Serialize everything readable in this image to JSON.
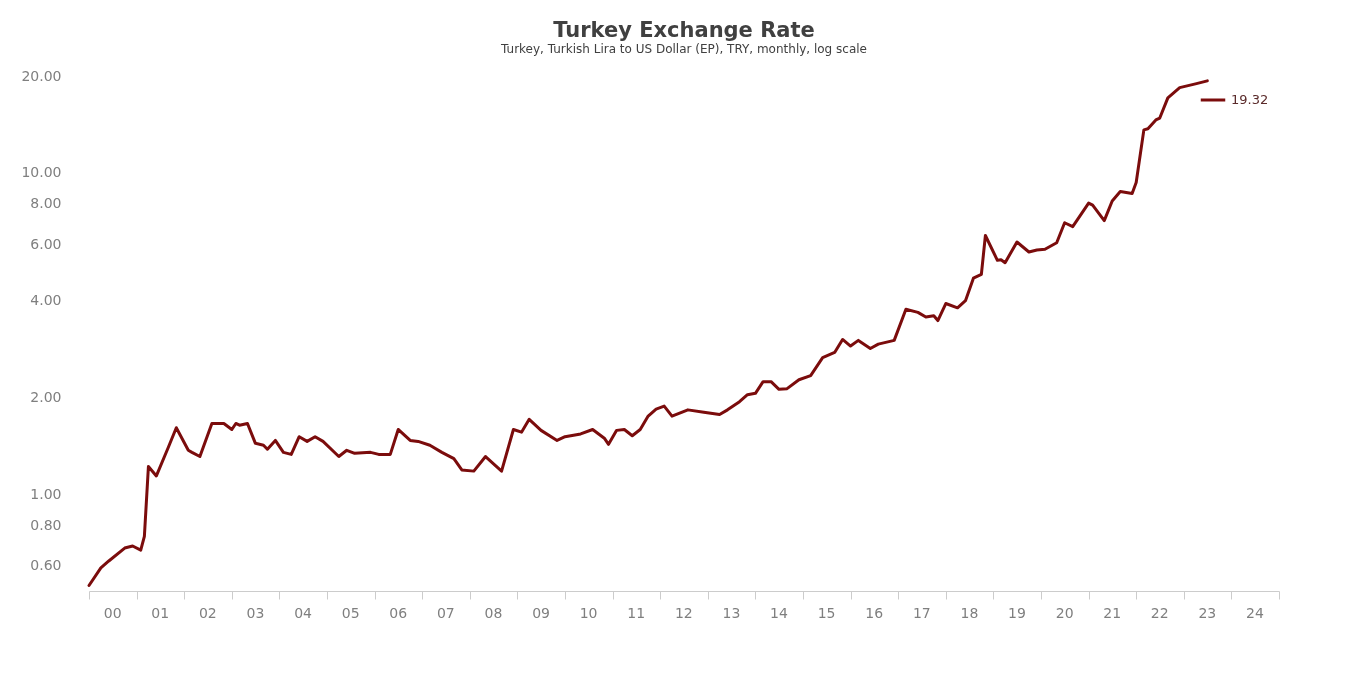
{
  "chart_data": {
    "type": "line",
    "title": "Turkey Exchange Rate",
    "subtitle": "Turkey, Turkish Lira to US Dollar (EP), TRY, monthly, log scale",
    "x": [
      "2000-01",
      "2000-04",
      "2000-06",
      "2000-10",
      "2000-12",
      "2001-02",
      "2001-03",
      "2001-04",
      "2001-06",
      "2001-09",
      "2001-11",
      "2002-02",
      "2002-03",
      "2002-05",
      "2002-08",
      "2002-11",
      "2003-01",
      "2003-02",
      "2003-03",
      "2003-05",
      "2003-07",
      "2003-09",
      "2003-10",
      "2003-12",
      "2004-02",
      "2004-04",
      "2004-06",
      "2004-08",
      "2004-10",
      "2004-12",
      "2005-04",
      "2005-06",
      "2005-08",
      "2005-12",
      "2006-02",
      "2006-05",
      "2006-07",
      "2006-08",
      "2006-10",
      "2006-12",
      "2007-03",
      "2007-06",
      "2007-09",
      "2007-11",
      "2008-02",
      "2008-05",
      "2008-09",
      "2008-12",
      "2009-02",
      "2009-04",
      "2009-07",
      "2009-11",
      "2010-01",
      "2010-05",
      "2010-08",
      "2010-11",
      "2010-12",
      "2011-02",
      "2011-04",
      "2011-06",
      "2011-08",
      "2011-10",
      "2011-12",
      "2012-02",
      "2012-04",
      "2012-08",
      "2012-12",
      "2013-04",
      "2013-06",
      "2013-09",
      "2013-11",
      "2014-01",
      "2014-03",
      "2014-05",
      "2014-07",
      "2014-09",
      "2014-12",
      "2015-03",
      "2015-06",
      "2015-09",
      "2015-11",
      "2016-01",
      "2016-03",
      "2016-06",
      "2016-08",
      "2016-12",
      "2017-03",
      "2017-06",
      "2017-08",
      "2017-10",
      "2017-11",
      "2018-01",
      "2018-04",
      "2018-06",
      "2018-08",
      "2018-10",
      "2018-11",
      "2019-02",
      "2019-03",
      "2019-04",
      "2019-07",
      "2019-10",
      "2019-12",
      "2020-02",
      "2020-05",
      "2020-07",
      "2020-09",
      "2021-01",
      "2021-02",
      "2021-05",
      "2021-07",
      "2021-09",
      "2021-12",
      "2022-01",
      "2022-03",
      "2022-04",
      "2022-06",
      "2022-07",
      "2022-09",
      "2022-12",
      "2023-04",
      "2023-07"
    ],
    "series": [
      {
        "name": "19.32",
        "color": "#7b0c0c",
        "values": [
          0.52,
          0.59,
          0.62,
          0.68,
          0.69,
          0.67,
          0.74,
          1.22,
          1.14,
          1.4,
          1.61,
          1.37,
          1.35,
          1.31,
          1.66,
          1.66,
          1.59,
          1.66,
          1.64,
          1.66,
          1.44,
          1.42,
          1.38,
          1.47,
          1.35,
          1.33,
          1.51,
          1.46,
          1.51,
          1.46,
          1.31,
          1.37,
          1.34,
          1.35,
          1.33,
          1.33,
          1.59,
          1.55,
          1.47,
          1.46,
          1.42,
          1.35,
          1.29,
          1.19,
          1.18,
          1.31,
          1.18,
          1.59,
          1.56,
          1.71,
          1.58,
          1.47,
          1.51,
          1.54,
          1.59,
          1.49,
          1.43,
          1.58,
          1.59,
          1.52,
          1.59,
          1.75,
          1.84,
          1.88,
          1.75,
          1.83,
          1.8,
          1.77,
          1.83,
          1.94,
          2.04,
          2.06,
          2.24,
          2.24,
          2.12,
          2.13,
          2.27,
          2.34,
          2.66,
          2.76,
          3.03,
          2.89,
          3.01,
          2.84,
          2.93,
          3.01,
          3.76,
          3.68,
          3.56,
          3.59,
          3.47,
          3.92,
          3.8,
          4.0,
          4.7,
          4.83,
          6.38,
          5.34,
          5.36,
          5.25,
          6.09,
          5.67,
          5.75,
          5.78,
          6.06,
          6.99,
          6.8,
          8.05,
          7.93,
          7.1,
          8.17,
          8.74,
          8.62,
          9.33,
          13.6,
          13.7,
          14.6,
          14.8,
          17.1,
          18.4,
          18.9,
          19.32
        ]
      }
    ],
    "log": "y",
    "legend": "top right",
    "ylim": [
      0.5,
      20
    ],
    "yticks": [
      {
        "value": 0.6,
        "label": "0.60"
      },
      {
        "value": 0.8,
        "label": "0.80"
      },
      {
        "value": 1,
        "label": "1.00"
      },
      {
        "value": 2,
        "label": "2.00"
      },
      {
        "value": 4,
        "label": "4.00"
      },
      {
        "value": 6,
        "label": "6.00"
      },
      {
        "value": 8,
        "label": "8.00"
      },
      {
        "value": 10,
        "label": "10.00"
      },
      {
        "value": 20,
        "label": "20.00"
      }
    ],
    "xlim": [
      "2000-01",
      "2025-01"
    ],
    "xticks": [
      {
        "value": "2000-01",
        "label": null
      },
      {
        "value": "2001-01",
        "label": null
      },
      {
        "value": "2002-01",
        "label": null
      },
      {
        "value": "2003-01",
        "label": null
      },
      {
        "value": "2004-01",
        "label": null
      },
      {
        "value": "2005-01",
        "label": null
      },
      {
        "value": "2006-01",
        "label": null
      },
      {
        "value": "2007-01",
        "label": null
      },
      {
        "value": "2008-01",
        "label": null
      },
      {
        "value": "2009-01",
        "label": null
      },
      {
        "value": "2010-01",
        "label": null
      },
      {
        "value": "2011-01",
        "label": null
      },
      {
        "value": "2012-01",
        "label": null
      },
      {
        "value": "2013-01",
        "label": null
      },
      {
        "value": "2014-01",
        "label": null
      },
      {
        "value": "2015-01",
        "label": null
      },
      {
        "value": "2016-01",
        "label": null
      },
      {
        "value": "2017-01",
        "label": null
      },
      {
        "value": "2018-01",
        "label": null
      },
      {
        "value": "2019-01",
        "label": null
      },
      {
        "value": "2020-01",
        "label": null
      },
      {
        "value": "2021-01",
        "label": null
      },
      {
        "value": "2022-01",
        "label": null
      },
      {
        "value": "2023-01",
        "label": null
      },
      {
        "value": "2024-01",
        "label": null
      },
      {
        "value": "2025-01",
        "label": null
      },
      {
        "value": "2000-07",
        "label": "00"
      },
      {
        "value": "2001-07",
        "label": "01"
      },
      {
        "value": "2002-07",
        "label": "02"
      },
      {
        "value": "2003-07",
        "label": "03"
      },
      {
        "value": "2004-07",
        "label": "04"
      },
      {
        "value": "2005-07",
        "label": "05"
      },
      {
        "value": "2006-07",
        "label": "06"
      },
      {
        "value": "2007-07",
        "label": "07"
      },
      {
        "value": "2008-07",
        "label": "08"
      },
      {
        "value": "2009-07",
        "label": "09"
      },
      {
        "value": "2010-07",
        "label": "10"
      },
      {
        "value": "2011-07",
        "label": "11"
      },
      {
        "value": "2012-07",
        "label": "12"
      },
      {
        "value": "2013-07",
        "label": "13"
      },
      {
        "value": "2014-07",
        "label": "14"
      },
      {
        "value": "2015-07",
        "label": "15"
      },
      {
        "value": "2016-07",
        "label": "16"
      },
      {
        "value": "2017-07",
        "label": "17"
      },
      {
        "value": "2018-07",
        "label": "18"
      },
      {
        "value": "2019-07",
        "label": "19"
      },
      {
        "value": "2020-07",
        "label": "20"
      },
      {
        "value": "2021-07",
        "label": "21"
      },
      {
        "value": "2022-07",
        "label": "22"
      },
      {
        "value": "2023-07",
        "label": "23"
      },
      {
        "value": "2024-07",
        "label": "24"
      }
    ]
  }
}
